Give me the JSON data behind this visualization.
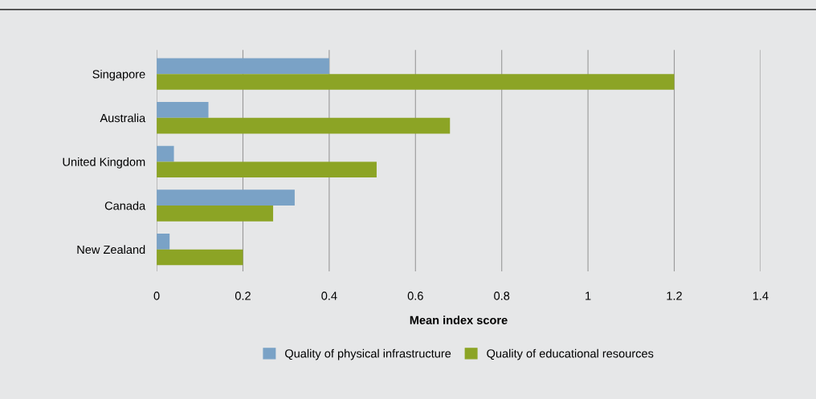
{
  "chart_data": {
    "type": "bar",
    "orientation": "horizontal",
    "xlabel": "Mean index score",
    "categories": [
      "Singapore",
      "Australia",
      "United Kingdom",
      "Canada",
      "New Zealand"
    ],
    "series": [
      {
        "name": "Quality of physical infrastructure",
        "color": "#7aa2c6",
        "values": [
          0.4,
          0.12,
          0.04,
          0.32,
          0.03
        ]
      },
      {
        "name": "Quality of educational resources",
        "color": "#8ca425",
        "values": [
          1.2,
          0.68,
          0.51,
          0.27,
          0.2
        ]
      }
    ],
    "xlim": [
      0,
      1.4
    ],
    "xticks": [
      0,
      0.2,
      0.4,
      0.6,
      0.8,
      1,
      1.2,
      1.4
    ],
    "grid": "x",
    "legend": "bottom"
  }
}
